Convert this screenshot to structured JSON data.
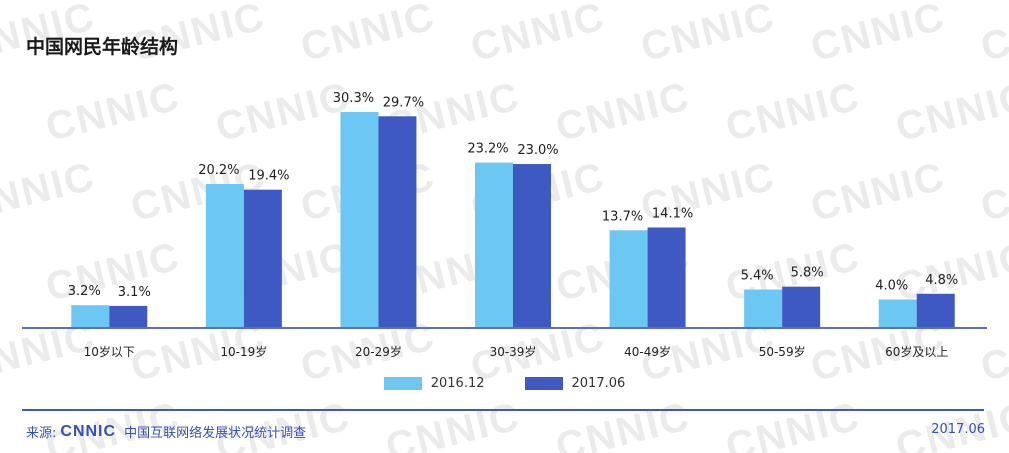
{
  "title": "中国网民年龄结构",
  "colors": {
    "series_2016": "#6cc8f2",
    "series_2017": "#3e5ac2",
    "axis": "#5a6fc9",
    "footer": "#3550b7"
  },
  "watermark": {
    "text": "CNNIC"
  },
  "source": {
    "label": "来源:",
    "logo": "CNNIC",
    "name": "中国互联网络发展状况统计调查"
  },
  "date": "2017.06",
  "chart_data": {
    "type": "bar",
    "title": "中国网民年龄结构",
    "xlabel": "",
    "ylabel": "",
    "categories": [
      "10岁以下",
      "10-19岁",
      "20-29岁",
      "30-39岁",
      "40-49岁",
      "50-59岁",
      "60岁及以上"
    ],
    "series": [
      {
        "name": "2016.12",
        "values": [
          3.2,
          20.2,
          30.3,
          23.2,
          13.7,
          5.4,
          4.0
        ],
        "labels": [
          "3.2%",
          "20.2%",
          "30.3%",
          "23.2%",
          "13.7%",
          "5.4%",
          "4.0%"
        ]
      },
      {
        "name": "2017.06",
        "values": [
          3.1,
          19.4,
          29.7,
          23.0,
          14.1,
          5.8,
          4.8
        ],
        "labels": [
          "3.1%",
          "19.4%",
          "29.7%",
          "23.0%",
          "14.1%",
          "5.8%",
          "4.8%"
        ]
      }
    ],
    "ylim": [
      0,
      30.3
    ],
    "grid": false,
    "legend": "bottom-center",
    "data_labels": true
  }
}
